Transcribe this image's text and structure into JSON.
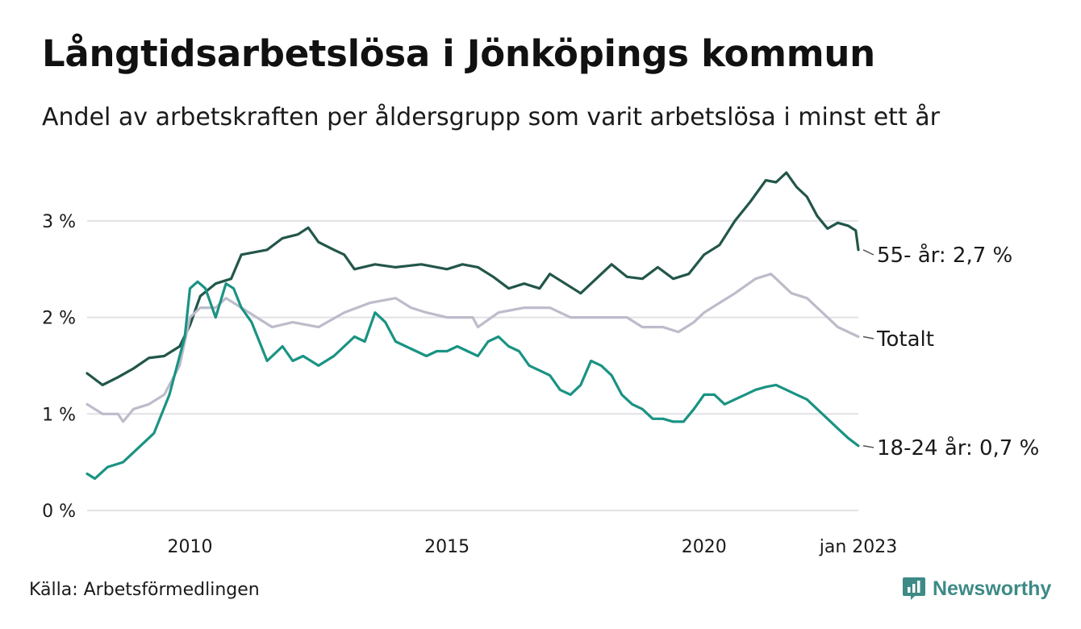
{
  "title": "Långtidsarbetslösa i Jönköpings kommun",
  "subtitle": "Andel av arbetskraften per åldersgrupp som varit arbetslösa i minst ett år",
  "source": "Källa: Arbetsförmedlingen",
  "brand": {
    "name": "Newsworthy",
    "logo_icon": "bar-chart-speech-bubble-icon",
    "color": "#3d8a86"
  },
  "chart_data": {
    "type": "line",
    "x_unit": "year",
    "x_range": [
      2008.0,
      2023.0
    ],
    "ylim": [
      0,
      3.5
    ],
    "y_ticks": [
      {
        "value": 0,
        "label": "0 %"
      },
      {
        "value": 1,
        "label": "1 %"
      },
      {
        "value": 2,
        "label": "2 %"
      },
      {
        "value": 3,
        "label": "3 %"
      }
    ],
    "x_ticks": [
      {
        "value": 2010,
        "label": "2010"
      },
      {
        "value": 2015,
        "label": "2015"
      },
      {
        "value": 2020,
        "label": "2020"
      },
      {
        "value": 2023,
        "label": "jan 2023"
      }
    ],
    "grid": true,
    "series": [
      {
        "name": "55- år",
        "end_label": "55- år: 2,7 %",
        "color": "#22564a",
        "points": [
          [
            2008.0,
            1.42
          ],
          [
            2008.3,
            1.3
          ],
          [
            2008.6,
            1.38
          ],
          [
            2008.9,
            1.47
          ],
          [
            2009.2,
            1.58
          ],
          [
            2009.5,
            1.6
          ],
          [
            2009.8,
            1.7
          ],
          [
            2010.0,
            1.92
          ],
          [
            2010.2,
            2.22
          ],
          [
            2010.5,
            2.35
          ],
          [
            2010.8,
            2.4
          ],
          [
            2011.0,
            2.65
          ],
          [
            2011.5,
            2.7
          ],
          [
            2011.8,
            2.82
          ],
          [
            2012.1,
            2.86
          ],
          [
            2012.3,
            2.93
          ],
          [
            2012.5,
            2.78
          ],
          [
            2012.8,
            2.7
          ],
          [
            2013.0,
            2.65
          ],
          [
            2013.2,
            2.5
          ],
          [
            2013.6,
            2.55
          ],
          [
            2014.0,
            2.52
          ],
          [
            2014.5,
            2.55
          ],
          [
            2015.0,
            2.5
          ],
          [
            2015.3,
            2.55
          ],
          [
            2015.6,
            2.52
          ],
          [
            2015.9,
            2.42
          ],
          [
            2016.2,
            2.3
          ],
          [
            2016.5,
            2.35
          ],
          [
            2016.8,
            2.3
          ],
          [
            2017.0,
            2.45
          ],
          [
            2017.3,
            2.35
          ],
          [
            2017.6,
            2.25
          ],
          [
            2017.9,
            2.4
          ],
          [
            2018.2,
            2.55
          ],
          [
            2018.5,
            2.42
          ],
          [
            2018.8,
            2.4
          ],
          [
            2019.1,
            2.52
          ],
          [
            2019.4,
            2.4
          ],
          [
            2019.7,
            2.45
          ],
          [
            2020.0,
            2.65
          ],
          [
            2020.3,
            2.75
          ],
          [
            2020.6,
            3.0
          ],
          [
            2020.9,
            3.2
          ],
          [
            2021.2,
            3.42
          ],
          [
            2021.4,
            3.4
          ],
          [
            2021.6,
            3.5
          ],
          [
            2021.8,
            3.35
          ],
          [
            2022.0,
            3.25
          ],
          [
            2022.2,
            3.05
          ],
          [
            2022.4,
            2.92
          ],
          [
            2022.6,
            2.98
          ],
          [
            2022.8,
            2.95
          ],
          [
            2022.95,
            2.9
          ],
          [
            2023.0,
            2.7
          ]
        ]
      },
      {
        "name": "Totalt",
        "end_label": "Totalt",
        "color": "#bdbccb",
        "points": [
          [
            2008.0,
            1.1
          ],
          [
            2008.3,
            1.0
          ],
          [
            2008.6,
            1.0
          ],
          [
            2008.7,
            0.92
          ],
          [
            2008.9,
            1.05
          ],
          [
            2009.2,
            1.1
          ],
          [
            2009.5,
            1.2
          ],
          [
            2009.8,
            1.5
          ],
          [
            2010.0,
            2.0
          ],
          [
            2010.2,
            2.1
          ],
          [
            2010.5,
            2.1
          ],
          [
            2010.7,
            2.2
          ],
          [
            2011.0,
            2.1
          ],
          [
            2011.3,
            2.0
          ],
          [
            2011.6,
            1.9
          ],
          [
            2012.0,
            1.95
          ],
          [
            2012.5,
            1.9
          ],
          [
            2013.0,
            2.05
          ],
          [
            2013.5,
            2.15
          ],
          [
            2014.0,
            2.2
          ],
          [
            2014.3,
            2.1
          ],
          [
            2014.6,
            2.05
          ],
          [
            2015.0,
            2.0
          ],
          [
            2015.5,
            2.0
          ],
          [
            2015.6,
            1.9
          ],
          [
            2016.0,
            2.05
          ],
          [
            2016.5,
            2.1
          ],
          [
            2017.0,
            2.1
          ],
          [
            2017.4,
            2.0
          ],
          [
            2018.0,
            2.0
          ],
          [
            2018.5,
            2.0
          ],
          [
            2018.8,
            1.9
          ],
          [
            2019.2,
            1.9
          ],
          [
            2019.5,
            1.85
          ],
          [
            2019.8,
            1.95
          ],
          [
            2020.0,
            2.05
          ],
          [
            2020.3,
            2.15
          ],
          [
            2020.6,
            2.25
          ],
          [
            2021.0,
            2.4
          ],
          [
            2021.3,
            2.45
          ],
          [
            2021.5,
            2.35
          ],
          [
            2021.7,
            2.25
          ],
          [
            2022.0,
            2.2
          ],
          [
            2022.3,
            2.05
          ],
          [
            2022.6,
            1.9
          ],
          [
            2023.0,
            1.8
          ]
        ]
      },
      {
        "name": "18-24 år",
        "end_label": "18-24 år: 0,7 %",
        "color": "#1a9383",
        "points": [
          [
            2008.0,
            0.38
          ],
          [
            2008.15,
            0.33
          ],
          [
            2008.4,
            0.45
          ],
          [
            2008.7,
            0.5
          ],
          [
            2009.0,
            0.65
          ],
          [
            2009.3,
            0.8
          ],
          [
            2009.6,
            1.2
          ],
          [
            2009.9,
            1.8
          ],
          [
            2010.0,
            2.3
          ],
          [
            2010.15,
            2.37
          ],
          [
            2010.3,
            2.3
          ],
          [
            2010.5,
            2.0
          ],
          [
            2010.7,
            2.35
          ],
          [
            2010.85,
            2.3
          ],
          [
            2011.0,
            2.1
          ],
          [
            2011.2,
            1.95
          ],
          [
            2011.5,
            1.55
          ],
          [
            2011.8,
            1.7
          ],
          [
            2012.0,
            1.55
          ],
          [
            2012.2,
            1.6
          ],
          [
            2012.5,
            1.5
          ],
          [
            2012.8,
            1.6
          ],
          [
            2013.0,
            1.7
          ],
          [
            2013.2,
            1.8
          ],
          [
            2013.4,
            1.75
          ],
          [
            2013.6,
            2.05
          ],
          [
            2013.8,
            1.95
          ],
          [
            2014.0,
            1.75
          ],
          [
            2014.2,
            1.7
          ],
          [
            2014.4,
            1.65
          ],
          [
            2014.6,
            1.6
          ],
          [
            2014.8,
            1.65
          ],
          [
            2015.0,
            1.65
          ],
          [
            2015.2,
            1.7
          ],
          [
            2015.4,
            1.65
          ],
          [
            2015.6,
            1.6
          ],
          [
            2015.8,
            1.75
          ],
          [
            2016.0,
            1.8
          ],
          [
            2016.2,
            1.7
          ],
          [
            2016.4,
            1.65
          ],
          [
            2016.6,
            1.5
          ],
          [
            2016.8,
            1.45
          ],
          [
            2017.0,
            1.4
          ],
          [
            2017.2,
            1.25
          ],
          [
            2017.4,
            1.2
          ],
          [
            2017.6,
            1.3
          ],
          [
            2017.8,
            1.55
          ],
          [
            2018.0,
            1.5
          ],
          [
            2018.2,
            1.4
          ],
          [
            2018.4,
            1.2
          ],
          [
            2018.6,
            1.1
          ],
          [
            2018.8,
            1.05
          ],
          [
            2019.0,
            0.95
          ],
          [
            2019.2,
            0.95
          ],
          [
            2019.4,
            0.92
          ],
          [
            2019.6,
            0.92
          ],
          [
            2019.8,
            1.05
          ],
          [
            2020.0,
            1.2
          ],
          [
            2020.2,
            1.2
          ],
          [
            2020.4,
            1.1
          ],
          [
            2020.6,
            1.15
          ],
          [
            2020.8,
            1.2
          ],
          [
            2021.0,
            1.25
          ],
          [
            2021.2,
            1.28
          ],
          [
            2021.4,
            1.3
          ],
          [
            2021.6,
            1.25
          ],
          [
            2021.8,
            1.2
          ],
          [
            2022.0,
            1.15
          ],
          [
            2022.2,
            1.05
          ],
          [
            2022.4,
            0.95
          ],
          [
            2022.6,
            0.85
          ],
          [
            2022.8,
            0.75
          ],
          [
            2023.0,
            0.67
          ]
        ]
      }
    ]
  }
}
